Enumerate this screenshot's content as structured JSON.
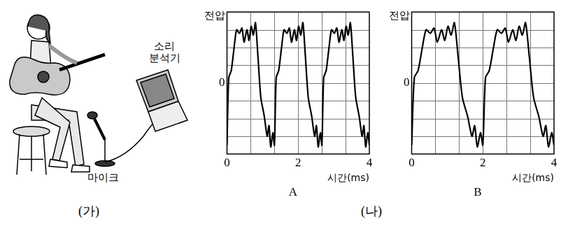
{
  "illustration": {
    "caption": "(가)",
    "analyzer_label": "소리\n분석기",
    "microphone_label": "마이크"
  },
  "figure_caption": "(나)",
  "chart_data": [
    {
      "type": "line",
      "title": "A",
      "x_label": "시간(ms)",
      "y_label": "전압",
      "x": [
        0,
        0.05,
        0.12,
        0.2,
        0.27,
        0.35,
        0.42,
        0.48,
        0.56,
        0.62,
        0.68,
        0.74,
        0.8,
        0.87,
        0.95,
        1.05,
        1.13,
        1.18,
        1.23,
        1.29,
        1.333,
        1.383,
        1.453,
        1.533,
        1.603,
        1.683,
        1.753,
        1.813,
        1.893,
        1.953,
        2.013,
        2.073,
        2.133,
        2.203,
        2.283,
        2.383,
        2.463,
        2.513,
        2.563,
        2.623,
        2.667,
        2.717,
        2.787,
        2.867,
        2.937,
        3.017,
        3.087,
        3.147,
        3.227,
        3.287,
        3.347,
        3.407,
        3.467,
        3.537,
        3.617,
        3.717,
        3.797,
        3.847,
        3.897,
        3.957,
        4.0
      ],
      "values": [
        -3.5,
        0.3,
        0.7,
        2.0,
        3.0,
        2.8,
        3.1,
        2.3,
        3.0,
        2.4,
        3.2,
        2.7,
        3.4,
        1.5,
        -0.8,
        -1.9,
        -3.0,
        -2.4,
        -3.6,
        -2.8,
        -3.5,
        0.3,
        0.7,
        2.0,
        3.0,
        2.8,
        3.1,
        2.3,
        3.0,
        2.4,
        3.2,
        2.7,
        3.4,
        1.5,
        -0.8,
        -1.9,
        -3.0,
        -2.4,
        -3.6,
        -2.8,
        -3.5,
        0.3,
        0.7,
        2.0,
        3.0,
        2.8,
        3.1,
        2.3,
        3.0,
        2.4,
        3.2,
        2.7,
        3.4,
        1.5,
        -0.8,
        -1.9,
        -3.0,
        -2.4,
        -3.6,
        -2.8,
        -3.5
      ],
      "color": "#000000",
      "xlim": [
        0,
        4
      ],
      "xticks": [
        0,
        2,
        4
      ],
      "ylim": [
        -4,
        4
      ],
      "yticks": [
        0
      ],
      "grid": true
    },
    {
      "type": "line",
      "title": "B",
      "x_label": "시간(ms)",
      "y_label": "전압",
      "x": [
        0,
        0.075,
        0.18,
        0.3,
        0.405,
        0.525,
        0.63,
        0.72,
        0.84,
        0.93,
        1.02,
        1.11,
        1.2,
        1.305,
        1.425,
        1.575,
        1.695,
        1.77,
        1.845,
        1.935,
        2.0,
        2.075,
        2.18,
        2.3,
        2.405,
        2.525,
        2.63,
        2.72,
        2.84,
        2.93,
        3.02,
        3.11,
        3.2,
        3.305,
        3.425,
        3.575,
        3.695,
        3.77,
        3.845,
        3.935,
        4.0
      ],
      "values": [
        -3.5,
        0.3,
        0.7,
        2.0,
        3.0,
        2.8,
        3.1,
        2.3,
        3.0,
        2.4,
        3.2,
        2.7,
        3.4,
        1.5,
        -0.8,
        -1.9,
        -3.0,
        -2.4,
        -3.6,
        -2.8,
        -3.5,
        0.3,
        0.7,
        2.0,
        3.0,
        2.8,
        3.1,
        2.3,
        3.0,
        2.4,
        3.2,
        2.7,
        3.4,
        1.5,
        -0.8,
        -1.9,
        -3.0,
        -2.4,
        -3.6,
        -2.8,
        -3.5
      ],
      "color": "#000000",
      "xlim": [
        0,
        4
      ],
      "xticks": [
        0,
        2,
        4
      ],
      "ylim": [
        -4,
        4
      ],
      "yticks": [
        0
      ],
      "grid": true
    }
  ]
}
